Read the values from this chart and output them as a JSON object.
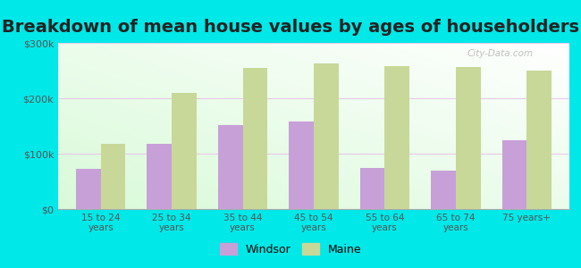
{
  "title": "Breakdown of mean house values by ages of householders",
  "categories": [
    "15 to 24\nyears",
    "25 to 34\nyears",
    "35 to 44\nyears",
    "45 to 54\nyears",
    "55 to 64\nyears",
    "65 to 74\nyears",
    "75 years+"
  ],
  "windsor_values": [
    72000,
    118000,
    152000,
    158000,
    74000,
    69000,
    125000
  ],
  "maine_values": [
    118000,
    210000,
    255000,
    263000,
    258000,
    257000,
    250000
  ],
  "windsor_color": "#c8a0d8",
  "maine_color": "#c8d898",
  "background_color": "#00e8e8",
  "ylim": [
    0,
    300000
  ],
  "yticks": [
    0,
    100000,
    200000,
    300000
  ],
  "ytick_labels": [
    "$0",
    "$100k",
    "$200k",
    "$300k"
  ],
  "legend_labels": [
    "Windsor",
    "Maine"
  ],
  "title_fontsize": 14,
  "bar_width": 0.35,
  "grid_color": "#e8c8e8"
}
